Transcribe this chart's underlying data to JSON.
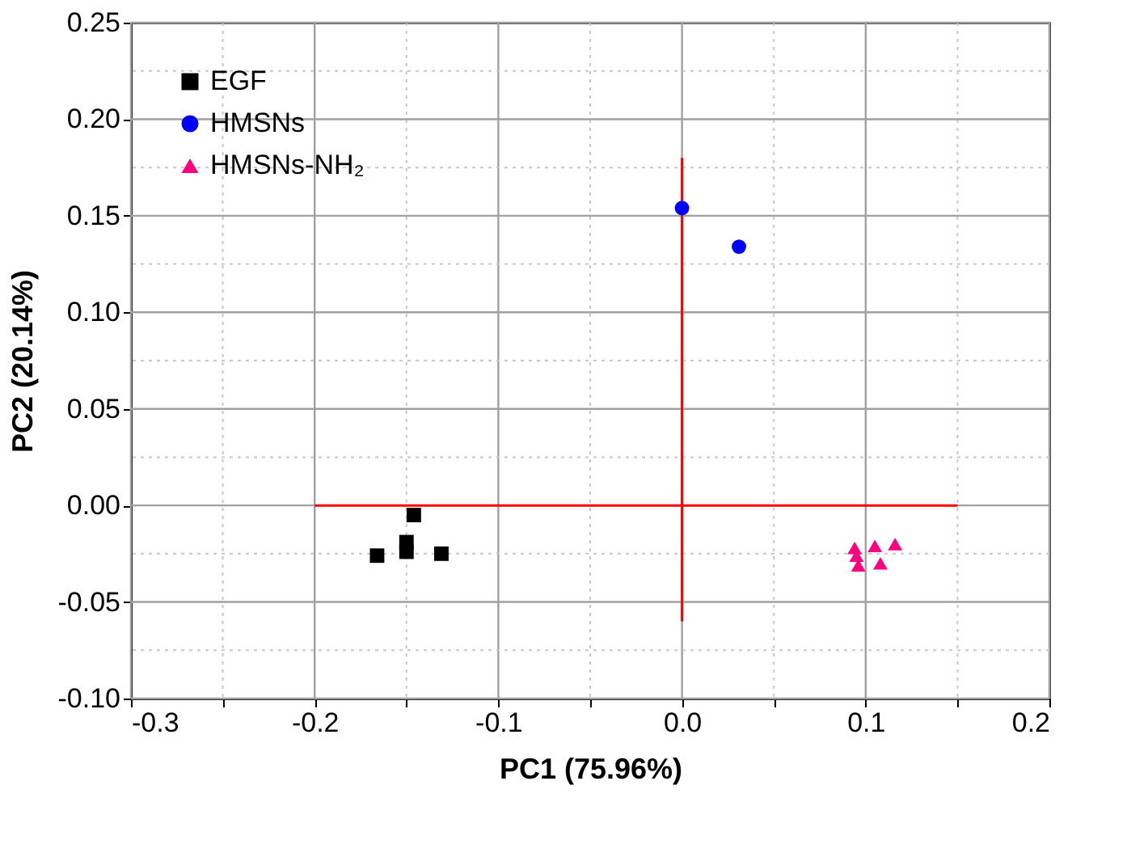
{
  "chart_data": {
    "type": "scatter",
    "xlabel": "PC1 (75.96%)",
    "ylabel": "PC2 (20.14%)",
    "xlim": [
      -0.3,
      0.2
    ],
    "ylim": [
      -0.1,
      0.25
    ],
    "xticks": [
      -0.3,
      {
        "value": -0.25,
        "label": null
      },
      -0.2,
      {
        "value": -0.15,
        "label": null
      },
      -0.1,
      {
        "value": -0.05,
        "label": null
      },
      {
        "value": 0,
        "label": "0.0"
      },
      {
        "value": 0.05,
        "label": null
      },
      0.1,
      {
        "value": 0.15,
        "label": null
      },
      0.2
    ],
    "yticks": [
      {
        "value": -0.1,
        "label": "-0.10"
      },
      {
        "value": -0.075,
        "label": null
      },
      -0.05,
      {
        "value": -0.025,
        "label": null
      },
      {
        "value": 0,
        "label": "0.00"
      },
      {
        "value": 0.025,
        "label": null
      },
      0.05,
      {
        "value": 0.075,
        "label": null
      },
      {
        "value": 0.1,
        "label": "0.10"
      },
      {
        "value": 0.125,
        "label": null
      },
      0.15,
      {
        "value": 0.175,
        "label": null
      },
      {
        "value": 0.2,
        "label": "0.20"
      },
      {
        "value": 0.225,
        "label": null
      },
      0.25
    ],
    "grid": true,
    "legend": "top left",
    "series": [
      {
        "name": "EGF",
        "color": "#000000",
        "marker": "square",
        "x": [
          -0.146,
          -0.15,
          -0.15,
          -0.166,
          -0.131
        ],
        "values": [
          -0.005,
          -0.019,
          -0.024,
          -0.026,
          -0.025
        ]
      },
      {
        "name": "HMSNs",
        "color": "#0000ff",
        "marker": "circle",
        "x": [
          0.0,
          0.031
        ],
        "values": [
          0.154,
          0.134
        ]
      },
      {
        "name": "HMSNs-NH₂",
        "color": "#ff0080",
        "marker": "triangle",
        "x": [
          0.094,
          0.105,
          0.116,
          0.096,
          0.108,
          0.095
        ],
        "values": [
          -0.022,
          -0.021,
          -0.02,
          -0.031,
          -0.03,
          -0.026
        ]
      },
      {
        "type": "line",
        "color": "#ff0000",
        "x": [
          -0.2,
          0.15
        ],
        "values": [
          0,
          0
        ]
      },
      {
        "type": "line",
        "color": "#ff0000",
        "x": [
          0,
          0
        ],
        "values": [
          -0.06,
          0.18
        ]
      }
    ]
  }
}
